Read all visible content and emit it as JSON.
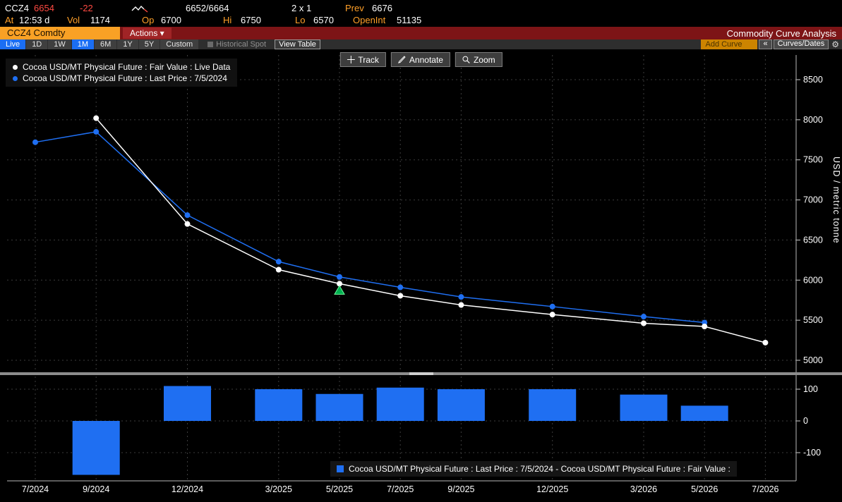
{
  "quote": {
    "ticker": "CCZ4",
    "last": "6654",
    "change": "-22",
    "bid_ask": "6652/6664",
    "lot": "2 x 1",
    "prev_label": "Prev",
    "prev": "6676",
    "at_label": "At",
    "time": "12:53 d",
    "vol_label": "Vol",
    "vol": "1174",
    "op_label": "Op",
    "open": "6700",
    "hi_label": "Hi",
    "high": "6750",
    "lo_label": "Lo",
    "low": "6570",
    "oi_label": "OpenInt",
    "open_interest": "51135"
  },
  "title_bar": {
    "security": "CCZ4 Comdty",
    "actions": "Actions ▾",
    "title": "Commodity Curve Analysis"
  },
  "toolbar": {
    "tabs": [
      {
        "label": "Live",
        "active": true
      },
      {
        "label": "1D",
        "active": false
      },
      {
        "label": "1W",
        "active": false
      },
      {
        "label": "1M",
        "active": true
      },
      {
        "label": "6M",
        "active": false
      },
      {
        "label": "1Y",
        "active": false
      },
      {
        "label": "5Y",
        "active": false
      },
      {
        "label": "Custom",
        "active": false
      }
    ],
    "historical_spot": "Historical Spot",
    "view_table": "View Table",
    "add_curve_placeholder": "Add Curve",
    "collapse": "«",
    "curves_dates": "Curves/Dates",
    "gear_icon": "⚙"
  },
  "chart_buttons": {
    "track": "Track",
    "annotate": "Annotate",
    "zoom": "Zoom"
  },
  "legend": {
    "fair_value": "Cocoa USD/MT Physical Future : Fair Value : Live Data",
    "last_price": "Cocoa USD/MT Physical Future : Last Price : 7/5/2024"
  },
  "spread_legend": "Cocoa USD/MT Physical Future : Last Price : 7/5/2024 - Cocoa USD/MT Physical Future : Fair Value :",
  "y_axis_title": "USD / metric tonne",
  "colors": {
    "accent_amber": "#ffa028",
    "down_red": "#ff4a42",
    "curve_blue": "#1f6ff2",
    "active_tab_blue": "#1b6ef3",
    "marker_green": "#00b050"
  },
  "chart_data": {
    "type": "line+bar",
    "title": "Commodity Curve Analysis - CCZ4 Comdty",
    "categories": [
      "7/2024",
      "9/2024",
      "12/2024",
      "3/2025",
      "5/2025",
      "7/2025",
      "9/2025",
      "12/2025",
      "3/2026",
      "5/2026",
      "7/2026"
    ],
    "month_offsets": [
      0,
      2,
      5,
      8,
      10,
      12,
      14,
      17,
      20,
      22,
      24
    ],
    "series": [
      {
        "name": "Cocoa USD/MT Physical Future : Fair Value : Live Data",
        "type": "line",
        "color": "#ffffff",
        "values": [
          null,
          8020,
          6700,
          6130,
          5955,
          5805,
          5690,
          5570,
          5462,
          5422,
          5220
        ]
      },
      {
        "name": "Cocoa USD/MT Physical Future : Last Price : 7/5/2024",
        "type": "line",
        "color": "#1f6ff2",
        "values": [
          7720,
          7850,
          6810,
          6230,
          6040,
          5910,
          5790,
          5670,
          5545,
          5470,
          null
        ]
      }
    ],
    "spread_series": {
      "name": "Last Price 7/5/2024 - Fair Value",
      "type": "bar",
      "values": [
        null,
        -170,
        110,
        100,
        85,
        105,
        100,
        100,
        83,
        48,
        null
      ]
    },
    "bar_color": "#1f6ff2",
    "upper_axis": {
      "ticks": [
        8500,
        8000,
        7500,
        7000,
        6500,
        6000,
        5500,
        5000
      ],
      "range": [
        4850,
        8800
      ],
      "label": "USD / metric tonne",
      "side": "right"
    },
    "lower_axis": {
      "ticks": [
        100,
        0,
        -100
      ],
      "range": [
        -185,
        140
      ],
      "side": "right"
    },
    "grid": true,
    "marker": {
      "category": "5/2025",
      "shape": "triangle",
      "color": "#00b050"
    }
  }
}
